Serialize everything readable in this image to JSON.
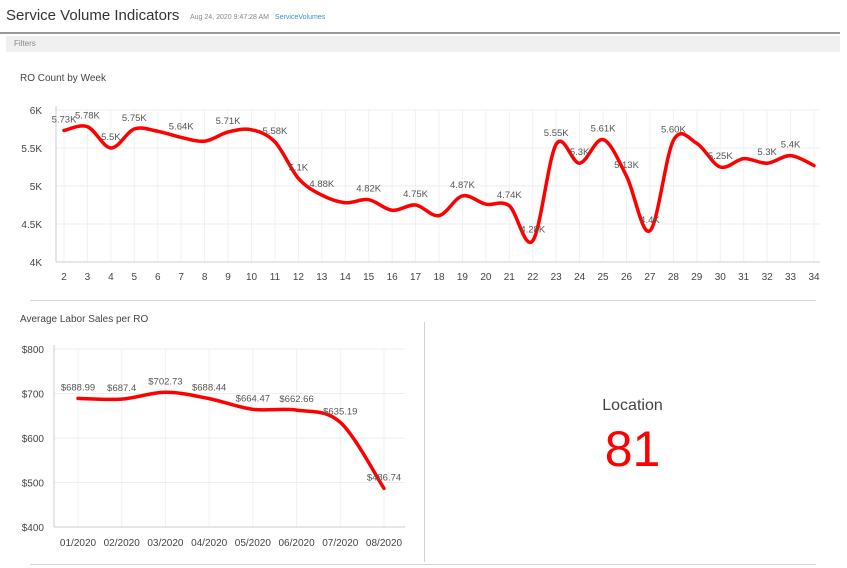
{
  "header": {
    "title": "Service Volume Indicators",
    "timestamp": "Aug 24, 2020 9:47:28 AM",
    "datasource": "ServiceVolumes"
  },
  "filters_label": "Filters",
  "chart_data": [
    {
      "type": "line",
      "title": "RO Count by Week",
      "x": [
        "2",
        "3",
        "4",
        "5",
        "6",
        "7",
        "8",
        "9",
        "10",
        "11",
        "12",
        "13",
        "14",
        "15",
        "16",
        "17",
        "18",
        "19",
        "20",
        "21",
        "22",
        "23",
        "24",
        "25",
        "26",
        "27",
        "28",
        "29",
        "30",
        "31",
        "32",
        "33",
        "34"
      ],
      "values": [
        5730,
        5780,
        5500,
        5750,
        5720,
        5640,
        5590,
        5710,
        5740,
        5580,
        5100,
        4880,
        4780,
        4820,
        4680,
        4750,
        4610,
        4870,
        4760,
        4740,
        4280,
        5550,
        5300,
        5610,
        5130,
        4410,
        5600,
        5560,
        5250,
        5360,
        5300,
        5400,
        5270
      ],
      "labels": [
        "5.73K",
        "5.78K",
        "5.5K",
        "5.75K",
        "",
        "5.64K",
        "",
        "5.71K",
        "",
        "5.58K",
        "5.1K",
        "4.88K",
        "",
        "4.82K",
        "",
        "4.75K",
        "",
        "4.87K",
        "",
        "4.74K",
        "4.28K",
        "5.55K",
        "5.3K",
        "5.61K",
        "5.13K",
        "4.4K",
        "5.60K",
        "",
        "5.25K",
        "",
        "5.3K",
        "5.4K",
        ""
      ],
      "yticks": [
        "4K",
        "4.5K",
        "5K",
        "5.5K",
        "6K"
      ],
      "ylim": [
        4000,
        6000
      ],
      "color": "#ff0000"
    },
    {
      "type": "line",
      "title": "Average Labor Sales per RO",
      "x": [
        "01/2020",
        "02/2020",
        "03/2020",
        "04/2020",
        "05/2020",
        "06/2020",
        "07/2020",
        "08/2020"
      ],
      "values": [
        688.99,
        687.4,
        702.73,
        688.44,
        664.47,
        662.66,
        635.19,
        486.74
      ],
      "labels": [
        "$688.99",
        "$687.4",
        "$702.73",
        "$688.44",
        "$664.47",
        "$662.66",
        "$635.19",
        "$486.74"
      ],
      "yticks": [
        "$400",
        "$500",
        "$600",
        "$700",
        "$800"
      ],
      "ylim": [
        400,
        800
      ],
      "color": "#ff0000"
    }
  ],
  "kpi": {
    "label": "Location",
    "value": "81",
    "color": "#ff0000"
  }
}
